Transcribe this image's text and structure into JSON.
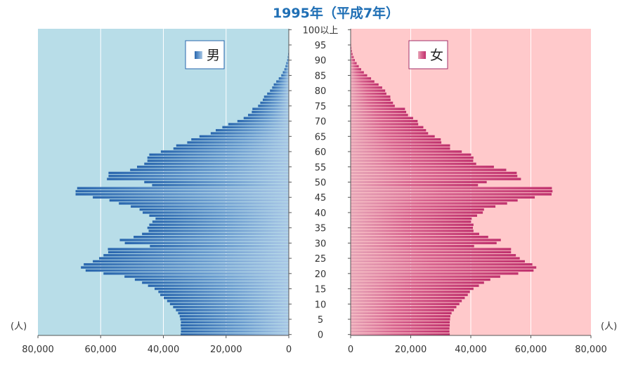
{
  "colors": {
    "male_bg": "#b8dde8",
    "female_bg": "#ffc9cb",
    "male_bar": "#2a67ae",
    "female_bar": "#c0326e",
    "title": "#1f6fb5"
  },
  "chart_data": {
    "type": "bar",
    "orientation": "horizontal-butterfly",
    "title": "1995年（平成7年）",
    "unit_left": "(人)",
    "unit_right": "(人)",
    "xlim": [
      0,
      80000
    ],
    "x_ticks_left": [
      "80,000",
      "60,000",
      "40,000",
      "20,000",
      "0"
    ],
    "x_ticks_right": [
      "0",
      "20,000",
      "40,000",
      "60,000",
      "80,000"
    ],
    "y_tick_labels": [
      "0",
      "5",
      "10",
      "15",
      "20",
      "25",
      "30",
      "35",
      "40",
      "45",
      "50",
      "55",
      "60",
      "65",
      "70",
      "75",
      "80",
      "85",
      "90",
      "95",
      "100以上"
    ],
    "grid": true,
    "legend_male": "男",
    "legend_female": "女",
    "ages": [
      0,
      1,
      2,
      3,
      4,
      5,
      6,
      7,
      8,
      9,
      10,
      11,
      12,
      13,
      14,
      15,
      16,
      17,
      18,
      19,
      20,
      21,
      22,
      23,
      24,
      25,
      26,
      27,
      28,
      29,
      30,
      31,
      32,
      33,
      34,
      35,
      36,
      37,
      38,
      39,
      40,
      41,
      42,
      43,
      44,
      45,
      46,
      47,
      48,
      49,
      50,
      51,
      52,
      53,
      54,
      55,
      56,
      57,
      58,
      59,
      60,
      61,
      62,
      63,
      64,
      65,
      66,
      67,
      68,
      69,
      70,
      71,
      72,
      73,
      74,
      75,
      76,
      77,
      78,
      79,
      80,
      81,
      82,
      83,
      84,
      85,
      86,
      87,
      88,
      89,
      90,
      91,
      92,
      93,
      94,
      95,
      96,
      97,
      98,
      99,
      100
    ],
    "male": [
      34500,
      34400,
      34400,
      34500,
      34400,
      34600,
      34800,
      35300,
      36000,
      36900,
      37900,
      38800,
      39900,
      41000,
      41600,
      42800,
      44900,
      46800,
      49100,
      52400,
      59100,
      64800,
      66300,
      65400,
      62500,
      60500,
      59100,
      57600,
      57700,
      44300,
      52300,
      53900,
      49500,
      46800,
      44700,
      45100,
      44500,
      43500,
      42500,
      44500,
      46600,
      47600,
      50400,
      54200,
      57200,
      62500,
      68000,
      68000,
      67500,
      43600,
      46100,
      58000,
      57500,
      57500,
      50600,
      48400,
      46100,
      45100,
      45100,
      44500,
      40800,
      36800,
      35900,
      32400,
      31100,
      28500,
      24900,
      23300,
      21200,
      19300,
      16400,
      14400,
      13000,
      11800,
      11600,
      9800,
      9100,
      8300,
      7900,
      6900,
      6000,
      5300,
      4800,
      4000,
      3200,
      2400,
      1900,
      1400,
      1050,
      800,
      500,
      330,
      200,
      130,
      80,
      50,
      30,
      20,
      10,
      5,
      10
    ],
    "female": [
      33000,
      32900,
      32900,
      33000,
      33000,
      33100,
      33200,
      33600,
      34400,
      35200,
      36200,
      37000,
      38000,
      39000,
      39700,
      40900,
      42700,
      44400,
      46500,
      49800,
      55800,
      60900,
      61800,
      60500,
      58000,
      56300,
      55000,
      53400,
      53400,
      41100,
      48600,
      50000,
      45800,
      42800,
      40900,
      40700,
      40900,
      40100,
      40300,
      42100,
      44000,
      44400,
      48200,
      52100,
      55600,
      61300,
      66900,
      67200,
      67000,
      42400,
      45300,
      56700,
      55500,
      55300,
      51800,
      47700,
      41800,
      40800,
      40900,
      40100,
      37000,
      33100,
      33100,
      30200,
      30000,
      28000,
      25800,
      25100,
      24200,
      22500,
      22300,
      20800,
      19100,
      18500,
      18100,
      14700,
      14100,
      13300,
      13200,
      11900,
      11500,
      10500,
      9300,
      7900,
      6800,
      5500,
      4400,
      3500,
      2700,
      2000,
      1400,
      1000,
      650,
      400,
      250,
      150,
      90,
      50,
      30,
      15,
      30
    ]
  }
}
